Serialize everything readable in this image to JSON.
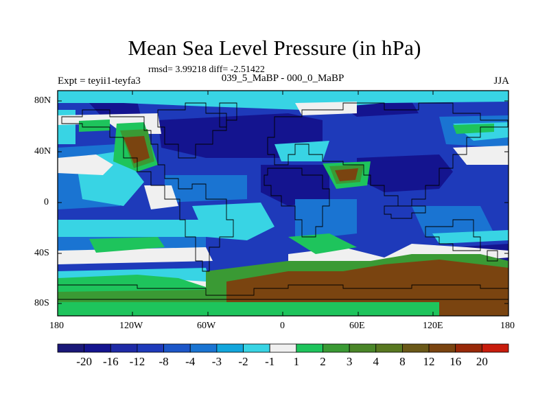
{
  "title": "Mean Sea Level Pressure (in hPa)",
  "stats": "rmsd= 3.99218 diff= -2.51422",
  "left_label": "Expt = teyii1-teyfa3",
  "center_label": "039_5_MaBP - 000_0_MaBP",
  "right_label": "JJA",
  "lat_ticks": [
    "80N",
    "40N",
    "0",
    "40S",
    "80S"
  ],
  "lon_ticks": [
    "180",
    "120W",
    "60W",
    "0",
    "60E",
    "120E",
    "180"
  ],
  "colorbar": {
    "colors": [
      "#1a1878",
      "#14148f",
      "#1e2aa6",
      "#1e3aba",
      "#1c56c8",
      "#1a74d2",
      "#12a6dc",
      "#38d4e4",
      "#f0f0f0",
      "#1ec45c",
      "#3a9a34",
      "#4a8628",
      "#587820",
      "#6a5818",
      "#7a4410",
      "#982808",
      "#c81c0c"
    ],
    "labels": [
      "-20",
      "-16",
      "-12",
      "-8",
      "-4",
      "-3",
      "-2",
      "-1",
      "1",
      "2",
      "3",
      "4",
      "8",
      "12",
      "16",
      "20"
    ]
  },
  "colors": {
    "deep_blue": "#14148f",
    "mid_blue": "#1e3aba",
    "light_blue": "#1a74d2",
    "cyan": "#38d4e4",
    "neutral": "#f0f0f0",
    "green": "#1ec45c",
    "dark_green": "#3a9a34",
    "olive": "#587820",
    "brown": "#7a4410"
  }
}
